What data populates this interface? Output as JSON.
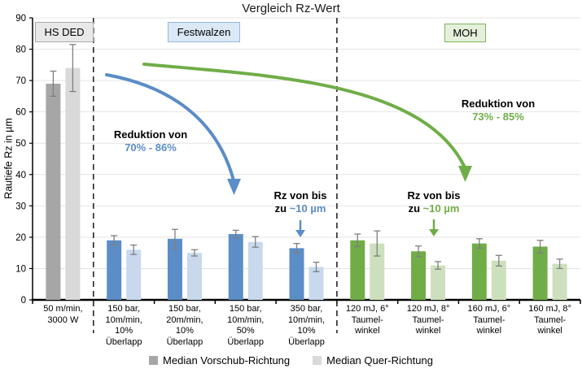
{
  "title": "Vergleich Rz-Wert",
  "colors": {
    "blue": "#5B8DC6",
    "light_blue": "#C8D9EE",
    "green": "#70AD47",
    "light_green": "#CDE0BD",
    "gray": "#A6A6A6",
    "light_gray": "#D9D9D9",
    "error_bar": "#7F7F7F",
    "grid": "#E4E4E4"
  },
  "chart_data": {
    "type": "bar",
    "title": "Vergleich Rz-Wert",
    "xlabel": "",
    "ylabel": "Rautiefe Rz in µm",
    "ylim": [
      0,
      90
    ],
    "ystep": 10,
    "grid": true,
    "legend_position": "bottom",
    "categories": [
      "50 m/min,\n3000 W",
      "150 bar,\n10m/min,\n10%\nÜberlapp",
      "150 bar,\n20m/min,\n10%\nÜberlapp",
      "150 bar,\n10m/min,\n50%\nÜberlapp",
      "350 bar,\n10m/min,\n10%\nÜberlapp",
      "120 mJ, 6°\nTaumel-\nwinkel",
      "120 mJ, 8°\nTaumel-\nwinkel",
      "160 mJ, 6°\nTaumel-\nwinkel",
      "160 mJ, 8°\nTaumel-\nwinkel"
    ],
    "series": [
      {
        "name": "Median Vorschub-Richtung",
        "values": [
          69,
          19,
          19.5,
          21,
          16.5,
          19,
          15.5,
          18,
          17
        ],
        "errors": [
          4,
          1.5,
          3,
          1.2,
          1.5,
          2,
          1.7,
          1.5,
          2
        ]
      },
      {
        "name": "Median Quer-Richtung",
        "values": [
          74,
          16,
          15,
          18.5,
          10.5,
          18,
          11,
          12.5,
          11.5
        ],
        "errors": [
          7.5,
          1.5,
          1,
          1.7,
          1.5,
          4,
          1.2,
          1.7,
          1.5
        ]
      }
    ],
    "groups": [
      {
        "label": "HS DED",
        "category_indexes": [
          0
        ],
        "colors": [
          "#A6A6A6",
          "#D9D9D9"
        ],
        "box_bg": "#E8E8E8",
        "box_border": "#A9A9A9"
      },
      {
        "label": "Festwalzen",
        "category_indexes": [
          1,
          2,
          3,
          4
        ],
        "colors": [
          "#5B8DC6",
          "#C8D9EE"
        ],
        "box_bg": "#DBE8F6",
        "box_border": "#94B9E2"
      },
      {
        "label": "MOH",
        "category_indexes": [
          5,
          6,
          7,
          8
        ],
        "colors": [
          "#70AD47",
          "#CDE0BD"
        ],
        "box_bg": "#E4F0DB",
        "box_border": "#7CB45B"
      }
    ]
  },
  "annotations": {
    "festwalzen_reduction": {
      "label": "Reduktion von",
      "value": "70% - 86%"
    },
    "moh_reduction": {
      "label": "Reduktion von",
      "value": "73% - 85%"
    },
    "festwalzen_rz": {
      "line1": "Rz von bis",
      "line2_prefix": "zu ",
      "line2_value": "~10 µm"
    },
    "moh_rz": {
      "line1": "Rz von bis",
      "line2_prefix": "zu ",
      "line2_value": "~10 µm"
    }
  },
  "legend": {
    "colors": [
      "#A6A6A6",
      "#D9D9D9"
    ]
  }
}
